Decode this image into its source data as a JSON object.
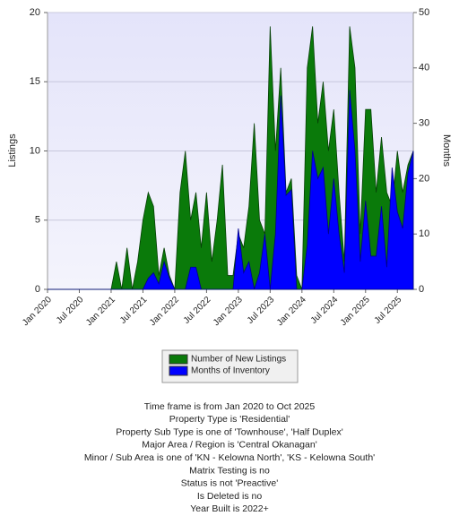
{
  "chart_data": {
    "type": "area",
    "ylabel": "Listings",
    "y2label": "Months",
    "categories": [
      "Jan 2020",
      null,
      null,
      null,
      null,
      null,
      "Jul 2020",
      null,
      null,
      null,
      null,
      null,
      "Jan 2021",
      null,
      null,
      null,
      null,
      null,
      "Jul 2021",
      null,
      null,
      null,
      null,
      null,
      "Jan 2022",
      null,
      null,
      null,
      null,
      null,
      "Jul 2022",
      null,
      null,
      null,
      null,
      null,
      "Jan 2023",
      null,
      null,
      null,
      null,
      null,
      "Jul 2023",
      null,
      null,
      null,
      null,
      null,
      "Jan 2024",
      null,
      null,
      null,
      null,
      null,
      "Jul 2024",
      null,
      null,
      null,
      null,
      null,
      "Jan 2025",
      null,
      null,
      null,
      null,
      null,
      "Jul 2025",
      null,
      null,
      null
    ],
    "series": [
      {
        "name": "Number of New Listings",
        "color": "#0a7a0a",
        "axis": "y",
        "values": [
          0,
          0,
          0,
          0,
          0,
          0,
          0,
          0,
          0,
          0,
          0,
          0,
          0,
          2,
          0,
          3,
          0,
          2,
          5,
          7,
          6,
          1,
          3,
          1,
          0,
          7,
          10,
          5,
          7,
          3,
          7,
          2,
          5,
          9,
          1,
          1,
          4,
          3,
          6,
          12,
          5,
          4,
          19,
          10,
          16,
          7,
          8,
          1,
          0,
          16,
          19,
          12,
          15,
          10,
          13,
          7,
          2,
          19,
          16,
          4,
          13,
          13,
          7,
          11,
          7,
          6,
          10,
          7,
          9,
          10
        ]
      },
      {
        "name": "Months of Inventory",
        "color": "#0000ff",
        "axis": "y2",
        "values": [
          0,
          0,
          0,
          0,
          0,
          0,
          0,
          0,
          0,
          0,
          0,
          0,
          0,
          0,
          0,
          0,
          0,
          0,
          0,
          2,
          3,
          1,
          5,
          2,
          0,
          0,
          0,
          4,
          4,
          0,
          0,
          0,
          0,
          0,
          0,
          0,
          11,
          3,
          5,
          0,
          3,
          10,
          0,
          10,
          35,
          17,
          18,
          0,
          0,
          8,
          25,
          20,
          22,
          10,
          20,
          10,
          3,
          36,
          25,
          5,
          16,
          6,
          6,
          15,
          4,
          22,
          14,
          11,
          21,
          25
        ]
      }
    ],
    "ylim": [
      0,
      20
    ],
    "yticks": [
      0,
      5,
      10,
      15,
      20
    ],
    "y2lim": [
      0,
      50
    ],
    "y2ticks": [
      0,
      10,
      20,
      30,
      40,
      50
    ],
    "grid": true
  },
  "footer": [
    "Time frame is from Jan 2020 to Oct 2025",
    "Property Type is 'Residential'",
    "Property Sub Type is one of 'Townhouse', 'Half Duplex'",
    "Major Area / Region is 'Central Okanagan'",
    "Minor / Sub Area is one of 'KN - Kelowna North', 'KS - Kelowna South'",
    "Matrix Testing is no",
    "Status is not 'Preactive'",
    "Is Deleted is no",
    "Year Built is 2022+"
  ]
}
